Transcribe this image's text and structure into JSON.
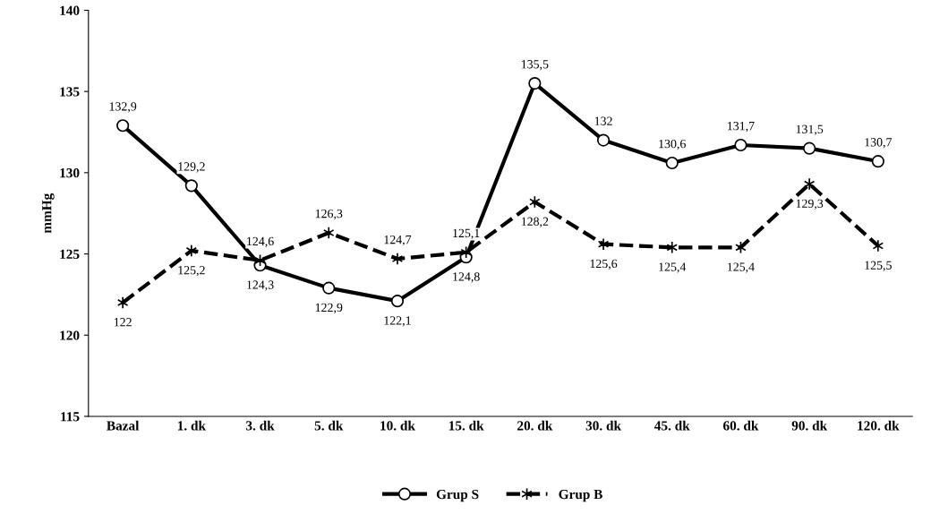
{
  "chart_data": {
    "type": "line",
    "ylabel": "mmHg",
    "categories": [
      "Bazal",
      "1. dk",
      "3. dk",
      "5. dk",
      "10. dk",
      "15. dk",
      "20. dk",
      "30. dk",
      "45. dk",
      "60. dk",
      "90. dk",
      "120. dk"
    ],
    "series": [
      {
        "name": "Grup S",
        "color": "#000000",
        "marker": "circle",
        "line_style": "solid",
        "values": [
          132.9,
          129.2,
          124.3,
          122.9,
          122.1,
          124.8,
          135.5,
          132,
          130.6,
          131.7,
          131.5,
          130.7
        ],
        "value_labels": [
          "132,9",
          "129,2",
          "124,3",
          "122,9",
          "122,1",
          "124,8",
          "135,5",
          "132",
          "130,6",
          "131,7",
          "131,5",
          "130,7"
        ]
      },
      {
        "name": "Grup B",
        "color": "#000000",
        "marker": "cross",
        "line_style": "dashed",
        "values": [
          122,
          125.2,
          124.6,
          126.3,
          124.7,
          125.1,
          128.2,
          125.6,
          125.4,
          125.4,
          129.3,
          125.5
        ],
        "value_labels": [
          "122",
          "125,2",
          "124,6",
          "126,3",
          "124,7",
          "125,1",
          "128,2",
          "125,6",
          "125,4",
          "125,4",
          "129,3",
          "125,5"
        ]
      }
    ],
    "ylim": [
      115,
      140
    ],
    "yticks": [
      115,
      120,
      125,
      130,
      135,
      140
    ],
    "grid": false,
    "legend": "bottom"
  }
}
